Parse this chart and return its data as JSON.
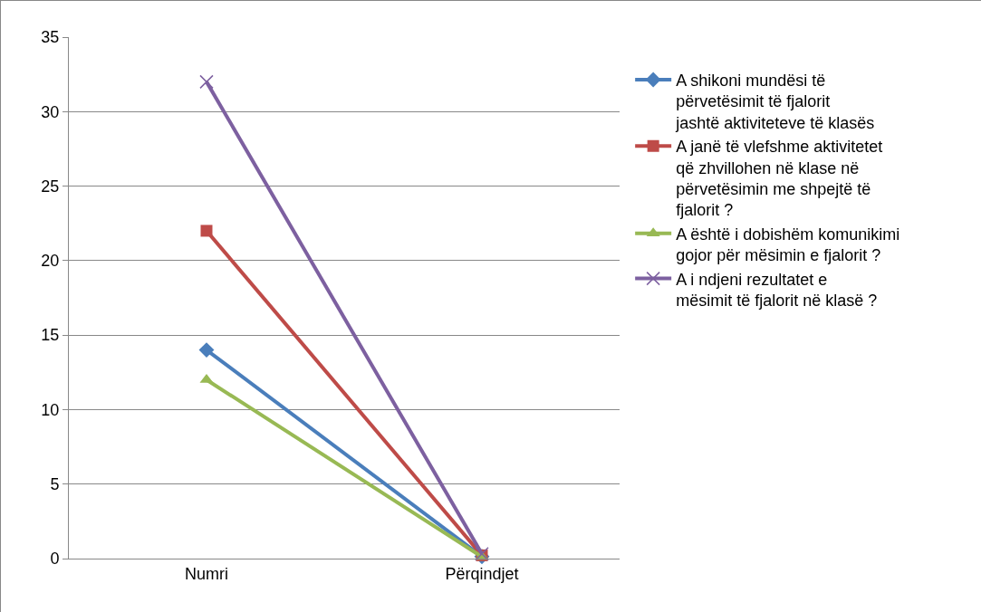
{
  "chart_data": {
    "type": "line",
    "categories": [
      "Numri",
      "Përqindjet"
    ],
    "series": [
      {
        "name": "A shikoni mundësi të përvetësimit të fjalorit jashtë aktiviteteve të klasës",
        "color": "#4a7ebb",
        "marker": "diamond",
        "values": [
          14,
          0.14
        ]
      },
      {
        "name": "A janë të vlefshme aktivitetet që zhvillohen në klase në përvetësimin me shpejtë të fjalorit ?",
        "color": "#be4b48",
        "marker": "square",
        "values": [
          22,
          0.22
        ]
      },
      {
        "name": "A është i dobishëm komunikimi gojor për mësimin e fjalorit ?",
        "color": "#98b954",
        "marker": "triangle",
        "values": [
          12,
          0.12
        ]
      },
      {
        "name": "A i ndjeni rezultatet e mësimit të fjalorit në klasë ?",
        "color": "#7d60a0",
        "marker": "cross",
        "values": [
          32,
          0.32
        ]
      }
    ],
    "ylim": [
      0,
      35
    ],
    "yticks": [
      0,
      5,
      10,
      15,
      20,
      25,
      30,
      35
    ],
    "grid": "y",
    "legend": "right",
    "line_style": "solid"
  }
}
